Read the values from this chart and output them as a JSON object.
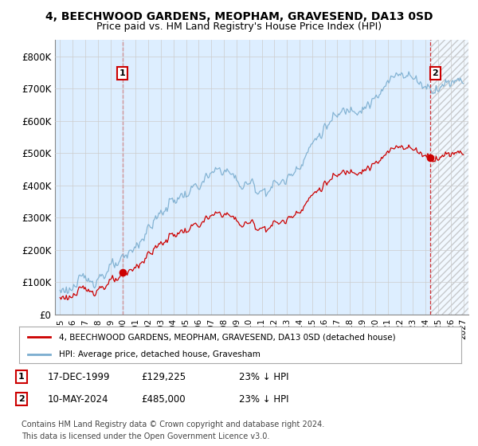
{
  "title": "4, BEECHWOOD GARDENS, MEOPHAM, GRAVESEND, DA13 0SD",
  "subtitle": "Price paid vs. HM Land Registry's House Price Index (HPI)",
  "ylim": [
    0,
    850000
  ],
  "yticks": [
    0,
    100000,
    200000,
    300000,
    400000,
    500000,
    600000,
    700000,
    800000
  ],
  "ytick_labels": [
    "£0",
    "£100K",
    "£200K",
    "£300K",
    "£400K",
    "£500K",
    "£600K",
    "£700K",
    "£800K"
  ],
  "xlim_start": 1994.6,
  "xlim_end": 2027.4,
  "xticks": [
    1995,
    1996,
    1997,
    1998,
    1999,
    2000,
    2001,
    2002,
    2003,
    2004,
    2005,
    2006,
    2007,
    2008,
    2009,
    2010,
    2011,
    2012,
    2013,
    2014,
    2015,
    2016,
    2017,
    2018,
    2019,
    2020,
    2021,
    2022,
    2023,
    2024,
    2025,
    2026,
    2027
  ],
  "sale1_x": 1999.96,
  "sale1_y": 129225,
  "sale2_x": 2024.36,
  "sale2_y": 485000,
  "sale1_label": "1",
  "sale2_label": "2",
  "red_line_color": "#cc0000",
  "blue_line_color": "#7aadcf",
  "grid_color": "#cccccc",
  "chart_bg_color": "#ddeeff",
  "background_color": "#ffffff",
  "legend_label_red": "4, BEECHWOOD GARDENS, MEOPHAM, GRAVESEND, DA13 0SD (detached house)",
  "legend_label_blue": "HPI: Average price, detached house, Gravesham",
  "footer1": "Contains HM Land Registry data © Crown copyright and database right 2024.",
  "footer2": "This data is licensed under the Open Government Licence v3.0.",
  "title_fontsize": 10,
  "subtitle_fontsize": 9
}
